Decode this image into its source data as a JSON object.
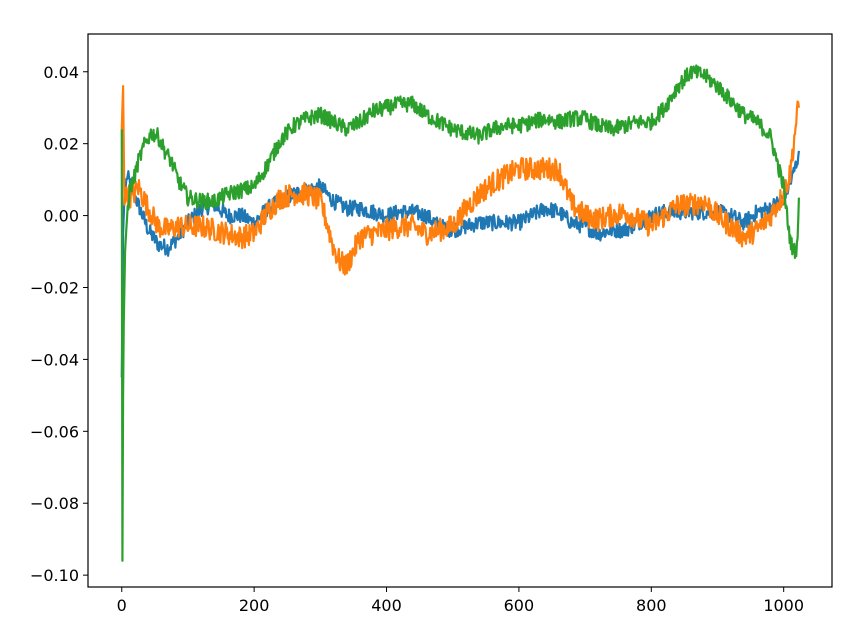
{
  "chart_data": {
    "type": "line",
    "title": "",
    "xlabel": "",
    "ylabel": "",
    "xlim": [
      -51,
      1073
    ],
    "ylim": [
      -0.1033,
      0.0505
    ],
    "xticks": [
      0,
      200,
      400,
      600,
      800,
      1000
    ],
    "xtick_labels": [
      "0",
      "200",
      "400",
      "600",
      "800",
      "1000"
    ],
    "yticks": [
      -0.1,
      -0.08,
      -0.06,
      -0.04,
      -0.02,
      0.0,
      0.02,
      0.04
    ],
    "ytick_labels": [
      "−0.10",
      "−0.08",
      "−0.06",
      "−0.04",
      "−0.02",
      "0.00",
      "0.02",
      "0.04"
    ],
    "grid": false,
    "legend": "none",
    "series": [
      {
        "color": "#1f77b4",
        "x": [
          0,
          2,
          4,
          8,
          15,
          25,
          40,
          55,
          70,
          85,
          100,
          120,
          140,
          160,
          180,
          200,
          220,
          240,
          260,
          280,
          300,
          320,
          340,
          360,
          380,
          400,
          420,
          440,
          460,
          480,
          500,
          520,
          540,
          560,
          580,
          600,
          620,
          640,
          660,
          680,
          700,
          720,
          740,
          760,
          780,
          800,
          820,
          840,
          860,
          880,
          900,
          920,
          940,
          960,
          980,
          1000,
          1010,
          1020,
          1023
        ],
        "values": [
          -0.045,
          -0.005,
          0.005,
          0.011,
          0.008,
          0.003,
          -0.004,
          -0.008,
          -0.009,
          -0.006,
          -0.002,
          0.002,
          0.003,
          0.0,
          0.0,
          -0.002,
          0.002,
          0.004,
          0.006,
          0.007,
          0.008,
          0.004,
          0.002,
          0.002,
          0.001,
          0.0,
          0.001,
          0.001,
          0.0,
          -0.003,
          -0.004,
          -0.003,
          -0.002,
          -0.002,
          -0.002,
          -0.002,
          0.0,
          0.002,
          0.001,
          -0.002,
          -0.003,
          -0.005,
          -0.004,
          -0.004,
          -0.002,
          0.0,
          0.001,
          0.001,
          0.001,
          0.001,
          0.001,
          0.0,
          -0.002,
          0.001,
          0.002,
          0.005,
          0.009,
          0.015,
          0.018
        ]
      },
      {
        "color": "#ff7f0e",
        "x": [
          0,
          2,
          4,
          8,
          15,
          25,
          40,
          55,
          70,
          85,
          100,
          120,
          140,
          160,
          180,
          200,
          220,
          240,
          260,
          280,
          300,
          310,
          320,
          330,
          340,
          350,
          360,
          380,
          400,
          420,
          440,
          460,
          480,
          500,
          520,
          540,
          560,
          580,
          600,
          620,
          640,
          660,
          680,
          700,
          720,
          740,
          760,
          780,
          800,
          820,
          840,
          860,
          880,
          900,
          920,
          940,
          960,
          980,
          1000,
          1010,
          1020,
          1023
        ],
        "values": [
          0.024,
          0.036,
          0.003,
          0.006,
          0.005,
          0.008,
          0.002,
          -0.003,
          -0.004,
          -0.003,
          -0.003,
          -0.003,
          -0.004,
          -0.005,
          -0.006,
          -0.005,
          0.001,
          0.005,
          0.006,
          0.006,
          0.004,
          -0.002,
          -0.009,
          -0.013,
          -0.014,
          -0.01,
          -0.006,
          -0.005,
          -0.004,
          -0.003,
          -0.003,
          -0.005,
          -0.004,
          -0.003,
          0.002,
          0.006,
          0.009,
          0.011,
          0.013,
          0.013,
          0.013,
          0.013,
          0.003,
          0.0,
          -0.001,
          0.0,
          0.001,
          -0.001,
          -0.003,
          0.0,
          0.003,
          0.003,
          0.004,
          0.0,
          -0.003,
          -0.006,
          -0.004,
          0.0,
          0.006,
          0.012,
          0.028,
          0.03
        ]
      },
      {
        "color": "#2ca02c",
        "x": [
          0,
          1,
          2,
          3,
          5,
          8,
          12,
          18,
          25,
          35,
          45,
          55,
          65,
          75,
          85,
          100,
          120,
          140,
          160,
          180,
          200,
          220,
          240,
          260,
          280,
          300,
          320,
          340,
          360,
          380,
          400,
          420,
          440,
          460,
          480,
          500,
          520,
          540,
          560,
          580,
          600,
          620,
          640,
          660,
          680,
          700,
          720,
          740,
          760,
          780,
          800,
          820,
          840,
          860,
          880,
          900,
          920,
          940,
          960,
          980,
          1000,
          1005,
          1010,
          1015,
          1020,
          1023
        ],
        "values": [
          0.024,
          -0.096,
          -0.05,
          -0.03,
          -0.01,
          0.0,
          0.007,
          0.01,
          0.015,
          0.02,
          0.023,
          0.022,
          0.018,
          0.015,
          0.01,
          0.005,
          0.004,
          0.004,
          0.006,
          0.007,
          0.008,
          0.014,
          0.021,
          0.025,
          0.027,
          0.028,
          0.026,
          0.024,
          0.026,
          0.029,
          0.03,
          0.031,
          0.031,
          0.028,
          0.026,
          0.024,
          0.023,
          0.022,
          0.024,
          0.025,
          0.025,
          0.026,
          0.027,
          0.026,
          0.027,
          0.027,
          0.025,
          0.024,
          0.025,
          0.026,
          0.026,
          0.03,
          0.036,
          0.04,
          0.039,
          0.036,
          0.032,
          0.028,
          0.026,
          0.022,
          0.008,
          0.0,
          -0.007,
          -0.01,
          -0.009,
          0.005
        ]
      }
    ]
  }
}
